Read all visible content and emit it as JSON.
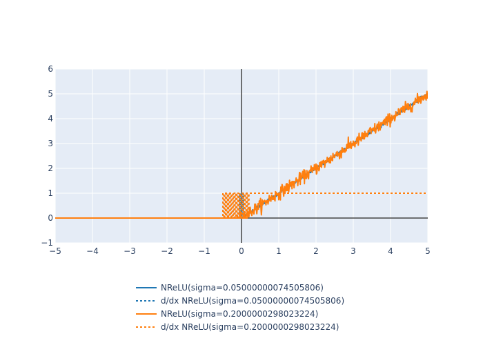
{
  "chart_data": {
    "type": "line",
    "title": "",
    "xlabel": "",
    "ylabel": "",
    "xlim": [
      -5,
      5
    ],
    "ylim": [
      -1,
      6
    ],
    "x_ticks": [
      -5,
      -4,
      -3,
      -2,
      -1,
      0,
      1,
      2,
      3,
      4,
      5
    ],
    "y_ticks": [
      -1,
      0,
      1,
      2,
      3,
      4,
      5,
      6
    ],
    "x_tick_labels": [
      "−5",
      "−4",
      "−3",
      "−2",
      "−1",
      "0",
      "1",
      "2",
      "3",
      "4",
      "5"
    ],
    "y_tick_labels": [
      "−1",
      "0",
      "1",
      "2",
      "3",
      "4",
      "5",
      "6"
    ],
    "grid": true,
    "zero_lines": true,
    "legend_position": "bottom-center",
    "colors": {
      "plot_bg": "#e5ecf6",
      "grid": "#ffffff",
      "zero_line": "#444444",
      "series_blue": "#1f77b4",
      "series_orange": "#ff7f0e"
    },
    "series": [
      {
        "name": "NReLU(sigma=0.05000000074505806)",
        "color": "#1f77b4",
        "dash": "solid",
        "kind": "noisy_relu",
        "sigma": 0.05,
        "x": [
          -5,
          0,
          5
        ],
        "y": [
          0,
          0,
          5
        ]
      },
      {
        "name": "d/dx NReLU(sigma=0.05000000074505806)",
        "color": "#1f77b4",
        "dash": "dot",
        "kind": "noisy_step",
        "flicker_range": [
          -0.05,
          0.05
        ],
        "x": [
          -5,
          0,
          0,
          5
        ],
        "y": [
          0,
          0,
          1,
          1
        ]
      },
      {
        "name": "NReLU(sigma=0.2000000298023224)",
        "color": "#ff7f0e",
        "dash": "solid",
        "kind": "noisy_relu",
        "sigma": 0.2,
        "x": [
          -5,
          0,
          5
        ],
        "y": [
          0,
          0,
          5
        ]
      },
      {
        "name": "d/dx NReLU(sigma=0.2000000298023224)",
        "color": "#ff7f0e",
        "dash": "dot",
        "kind": "noisy_step",
        "flicker_range": [
          -0.5,
          0.2
        ],
        "x": [
          -5,
          0,
          0,
          5
        ],
        "y": [
          0,
          0,
          1,
          1
        ]
      }
    ]
  }
}
